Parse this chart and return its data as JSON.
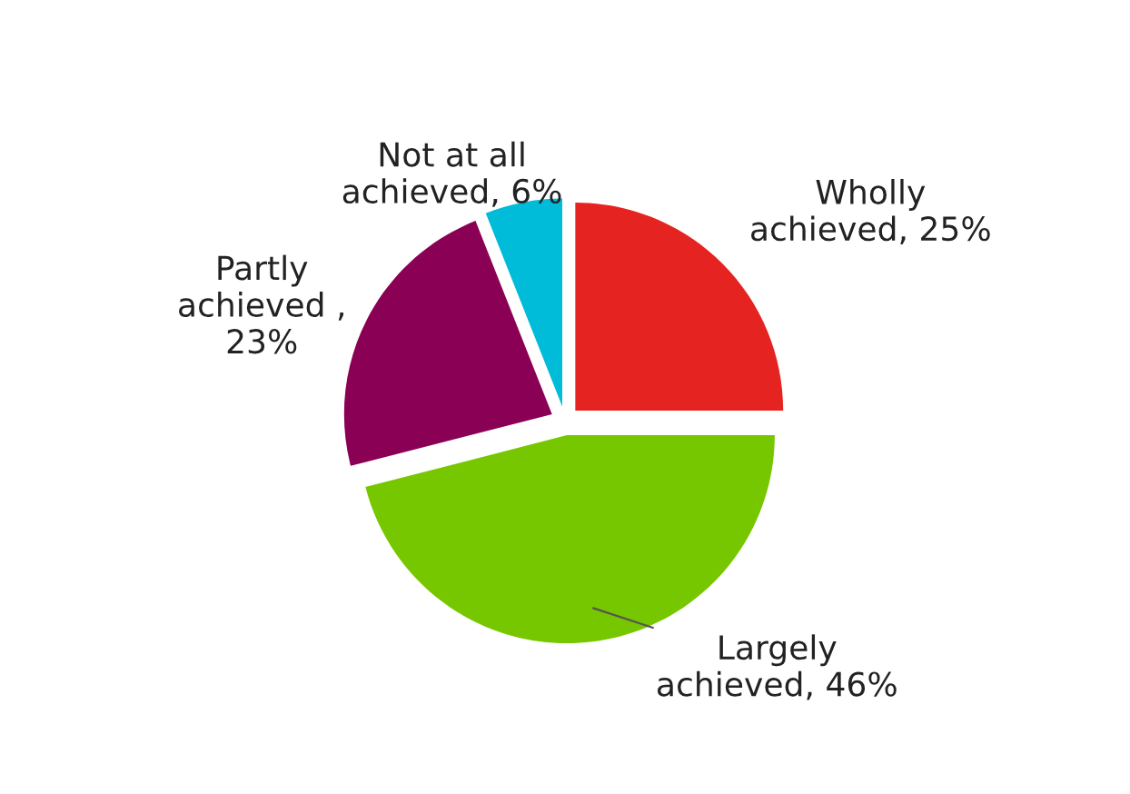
{
  "chart_data": {
    "type": "pie",
    "categories": [
      "Wholly\nachieved, 25%",
      "Largely\nachieved, 46%",
      "Partly\nachieved ,\n23%",
      "Not at all\nachieved, 6%"
    ],
    "values": [
      25,
      46,
      23,
      6
    ],
    "colors": [
      "#e52421",
      "#77c700",
      "#8a0055",
      "#00bcd9"
    ]
  }
}
